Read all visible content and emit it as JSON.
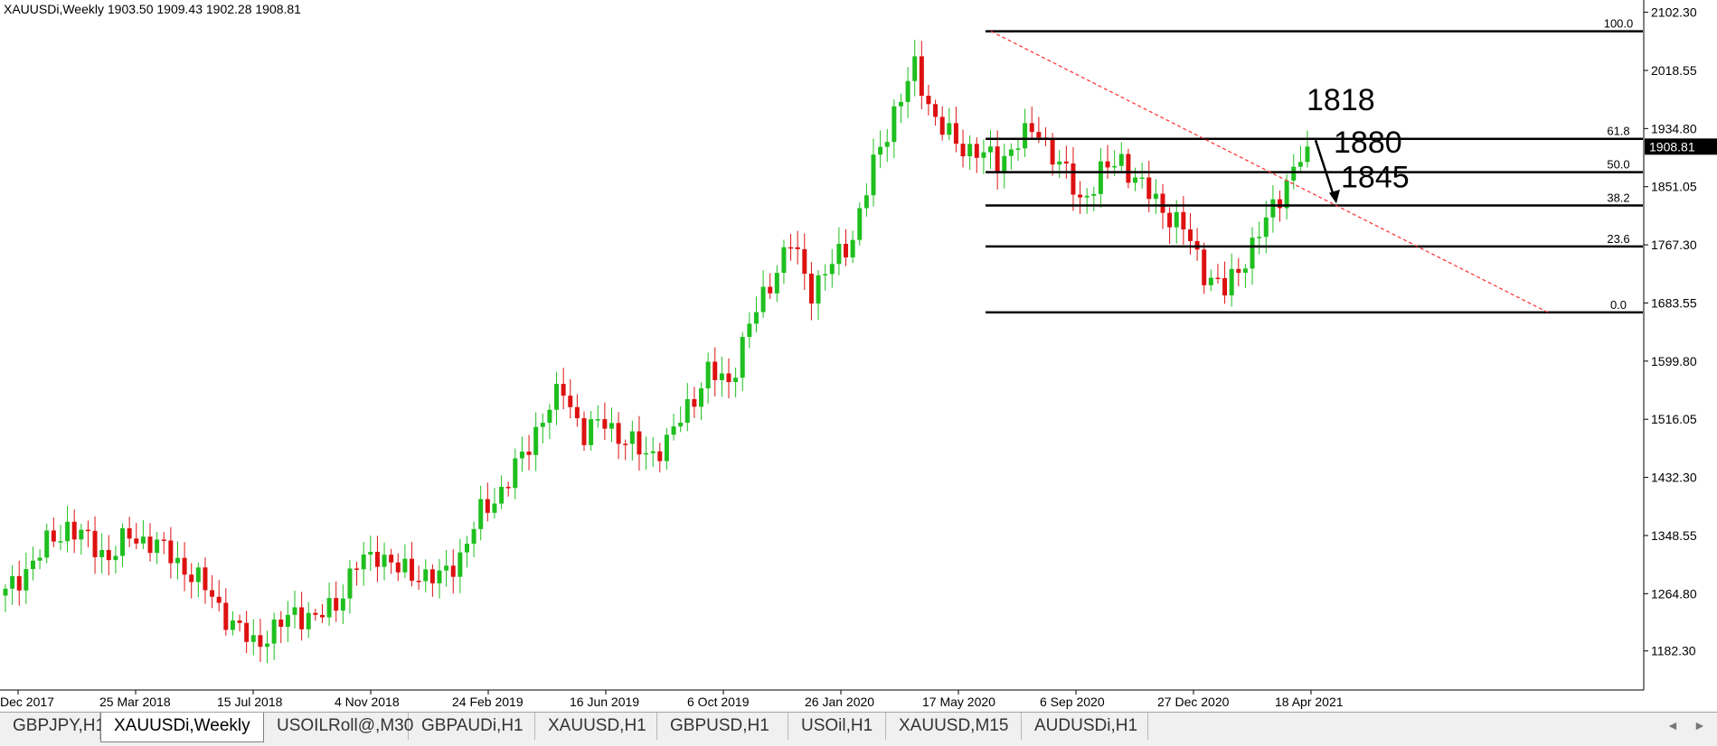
{
  "header": {
    "symbol": "XAUUSDi,Weekly",
    "ohlc": "1903.50 1909.43 1902.28 1908.81"
  },
  "tabs": [
    {
      "label": "GBPJPY,H1",
      "active": false
    },
    {
      "label": "XAUUSDi,Weekly",
      "active": true
    },
    {
      "label": "USOILRoll@,M30",
      "active": false
    },
    {
      "label": "GBPAUDi,H1",
      "active": false
    },
    {
      "label": "XAUUSD,H1",
      "active": false
    },
    {
      "label": "GBPUSD,H1",
      "active": false
    },
    {
      "label": "USOil,H1",
      "active": false
    },
    {
      "label": "XAUUSD,M15",
      "active": false
    },
    {
      "label": "AUDUSDi,H1",
      "active": false
    }
  ],
  "colors": {
    "up": "#1fbf1f",
    "down": "#dd1111",
    "fib": "#000000",
    "trend": "#ff2a2a",
    "price_label_bg": "#000000"
  },
  "chart_data": {
    "type": "candlestick",
    "title": "XAUUSDi,Weekly",
    "ylim": [
      1126,
      2120
    ],
    "y_ticks": [
      "2102.30",
      "2018.55",
      "1934.80",
      "1851.05",
      "1767.30",
      "1683.55",
      "1599.80",
      "1516.05",
      "1432.30",
      "1348.55",
      "1264.80",
      "1182.30"
    ],
    "x_ticks": [
      "Dec 2017",
      "25 Mar 2018",
      "15 Jul 2018",
      "4 Nov 2018",
      "24 Feb 2019",
      "16 Jun 2019",
      "6 Oct 2019",
      "26 Jan 2020",
      "17 May 2020",
      "6 Sep 2020",
      "27 Dec 2020",
      "18 Apr 2021"
    ],
    "current_price": "1908.81",
    "fib_levels": [
      {
        "label": "100.0",
        "price": 2075
      },
      {
        "label": "61.8",
        "price": 1920
      },
      {
        "label": "50.0",
        "price": 1872
      },
      {
        "label": "38.2",
        "price": 1824
      },
      {
        "label": "23.6",
        "price": 1765
      },
      {
        "label": "0.0",
        "price": 1670
      }
    ],
    "annotations": [
      {
        "text": "1818",
        "price": 1961
      },
      {
        "text": "1880",
        "price": 1900
      },
      {
        "text": "1845",
        "price": 1850
      }
    ],
    "anchors": [
      1264,
      1300,
      1335,
      1362,
      1340,
      1318,
      1347,
      1340,
      1320,
      1292,
      1262,
      1218,
      1195,
      1210,
      1240,
      1226,
      1253,
      1305,
      1325,
      1298,
      1294,
      1285,
      1320,
      1380,
      1414,
      1460,
      1520,
      1558,
      1495,
      1513,
      1485,
      1465,
      1480,
      1535,
      1582,
      1570,
      1650,
      1715,
      1770,
      1703,
      1738,
      1780,
      1880,
      1960,
      2020,
      1950,
      1910,
      1905,
      1882,
      1920,
      1930,
      1885,
      1830,
      1870,
      1890,
      1850,
      1820,
      1790,
      1730,
      1700,
      1750,
      1800,
      1860,
      1908.81
    ],
    "candles_per_segment": 3
  }
}
